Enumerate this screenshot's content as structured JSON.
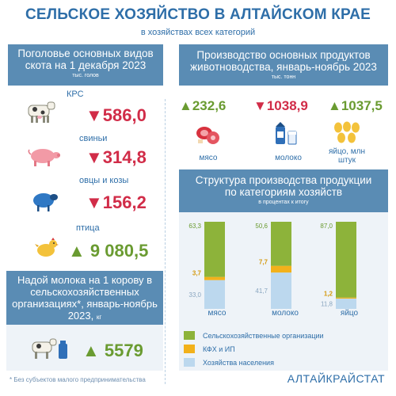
{
  "header": {
    "title": "СЕЛЬСКОЕ ХОЗЯЙСТВО В АЛТАЙСКОМ КРАЕ",
    "subtitle": "в хозяйствах всех категорий"
  },
  "livestock": {
    "title": "Поголовье основных видов скота на 1 декабря  2023",
    "unit": "тыс. голов",
    "items": [
      {
        "label": "КРС",
        "value": "586,0",
        "trend": "down"
      },
      {
        "label": "свиньи",
        "value": "314,8",
        "trend": "down"
      },
      {
        "label": "овцы и козы",
        "value": "156,2",
        "trend": "down"
      },
      {
        "label": "птица",
        "value": "9 080,5",
        "trend": "up"
      }
    ]
  },
  "milk_yield": {
    "title": "Надой молока на 1 корову в сельскохозяйственных организациях*, январь-ноябрь 2023,",
    "unit": "кг",
    "value": "5579",
    "trend": "up"
  },
  "production": {
    "title": "Производство основных продуктов животноводства, январь-ноябрь 2023",
    "unit": "тыс. тонн",
    "items": [
      {
        "value": "232,6",
        "trend": "up",
        "label": "мясо"
      },
      {
        "value": "1038,9",
        "trend": "down",
        "label": "молоко"
      },
      {
        "value": "1037,5",
        "trend": "up",
        "label": "яйцо, млн штук"
      }
    ]
  },
  "structure": {
    "title": "Структура производства продукции по категориям хозяйств",
    "unit": "в процентах к итогу",
    "legend": [
      {
        "label": "Сельскохозяйственные  организации",
        "color": "#8db33a"
      },
      {
        "label": "КФХ и ИП",
        "color": "#f2b11b"
      },
      {
        "label": "Хозяйства  населения",
        "color": "#bcd8ee"
      }
    ]
  },
  "chart_data": {
    "type": "bar",
    "stacked": true,
    "categories": [
      "мясо",
      "молоко",
      "яйцо"
    ],
    "series": [
      {
        "name": "Сельскохозяйственные  организации",
        "values": [
          63.3,
          50.6,
          87.0
        ],
        "labels": [
          "63,3",
          "50,6",
          "87,0"
        ],
        "color": "#8db33a"
      },
      {
        "name": "КФХ и ИП",
        "values": [
          3.7,
          7.7,
          1.2
        ],
        "labels": [
          "3,7",
          "7,7",
          "1,2"
        ],
        "color": "#f2b11b"
      },
      {
        "name": "Хозяйства  населения",
        "values": [
          33.0,
          41.7,
          11.8
        ],
        "labels": [
          "33,0",
          "41,7",
          "11,8"
        ],
        "color": "#bcd8ee"
      }
    ],
    "ylim": [
      0,
      100
    ]
  },
  "footer": {
    "footnote": "* Без субъектов  малого  предпринимательства",
    "brand": "АЛТАЙКРАЙСТАТ"
  },
  "icons": {
    "cow": "cow-icon",
    "pig": "pig-icon",
    "sheep": "sheep-icon",
    "chicken": "chicken-icon",
    "meat": "meat-icon",
    "milk": "milk-icon",
    "eggs": "eggs-icon",
    "milking": "cow-milk-can-icon"
  },
  "colors": {
    "up": "#6a9b31",
    "down": "#d12c48",
    "header_bg": "#5a8cb4",
    "title": "#2e6ea8"
  }
}
